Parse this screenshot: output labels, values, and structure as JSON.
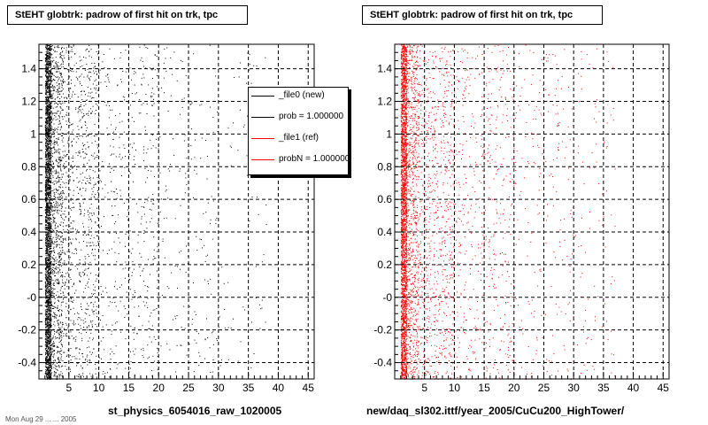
{
  "panels": [
    {
      "title": "StEHT globtrk: padrow of first hit on trk, tpc",
      "caption": "st_physics_6054016_raw_1020005",
      "color": "#000000"
    },
    {
      "title": "StEHT globtrk: padrow of first hit on trk, tpc",
      "caption": "new/daq_sl302.ittf/year_2005/CuCu200_HighTower/",
      "color": "#ff0000"
    }
  ],
  "legend": {
    "entries": [
      {
        "label": "_file0 (new)",
        "color": "#000000"
      },
      {
        "label": "prob = 1.000000",
        "color": "#000000"
      },
      {
        "label": "_file1 (ref)",
        "color": "#ff0000"
      },
      {
        "label": "probN = 1.000000",
        "color": "#ff0000"
      }
    ]
  },
  "footer_scrawl": "Mon Aug 29 ... ... 2005",
  "chart_data": [
    {
      "type": "scatter",
      "title": "StEHT globtrk: padrow of first hit on trk, tpc",
      "xlabel": "st_physics_6054016_raw_1020005",
      "ylabel": "",
      "xlim": [
        0,
        46
      ],
      "ylim": [
        -0.5,
        1.55
      ],
      "xticks": [
        5,
        10,
        15,
        20,
        25,
        30,
        35,
        40,
        45
      ],
      "ytick_labels": [
        "-0.4",
        "-0.2",
        "-0",
        "0.2",
        "0.4",
        "0.6",
        "0.8",
        "1",
        "1.2",
        "1.4"
      ],
      "ytick_values": [
        -0.4,
        -0.2,
        0,
        0.2,
        0.4,
        0.6,
        0.8,
        1.0,
        1.2,
        1.4
      ],
      "grid": true,
      "legend_position": "top-right",
      "series": [
        {
          "name": "_file0 (new)",
          "color": "#000000",
          "density_profile": [
            {
              "x": [
                1,
                2
              ],
              "points": 3000
            },
            {
              "x": [
                2,
                4
              ],
              "points": 900
            },
            {
              "x": [
                4,
                10
              ],
              "points": 800
            },
            {
              "x": [
                10,
                20
              ],
              "points": 420
            },
            {
              "x": [
                20,
                30
              ],
              "points": 170
            },
            {
              "x": [
                30,
                38
              ],
              "points": 70
            }
          ]
        }
      ]
    },
    {
      "type": "scatter",
      "title": "StEHT globtrk: padrow of first hit on trk, tpc",
      "xlabel": "new/daq_sl302.ittf/year_2005/CuCu200_HighTower/",
      "ylabel": "",
      "xlim": [
        0,
        46
      ],
      "ylim": [
        -0.5,
        1.55
      ],
      "xticks": [
        5,
        10,
        15,
        20,
        25,
        30,
        35,
        40,
        45
      ],
      "ytick_labels": [
        "-0.4",
        "-0.2",
        "-0",
        "0.2",
        "0.4",
        "0.6",
        "0.8",
        "1",
        "1.2",
        "1.4"
      ],
      "ytick_values": [
        -0.4,
        -0.2,
        0,
        0.2,
        0.4,
        0.6,
        0.8,
        1.0,
        1.2,
        1.4
      ],
      "grid": true,
      "series": [
        {
          "name": "_file1 (ref)",
          "color": "#ff0000",
          "density_profile": [
            {
              "x": [
                1,
                2
              ],
              "points": 2600
            },
            {
              "x": [
                2,
                4
              ],
              "points": 800
            },
            {
              "x": [
                4,
                10
              ],
              "points": 750
            },
            {
              "x": [
                10,
                20
              ],
              "points": 500
            },
            {
              "x": [
                20,
                30
              ],
              "points": 220
            },
            {
              "x": [
                30,
                37
              ],
              "points": 90
            }
          ]
        }
      ]
    }
  ]
}
